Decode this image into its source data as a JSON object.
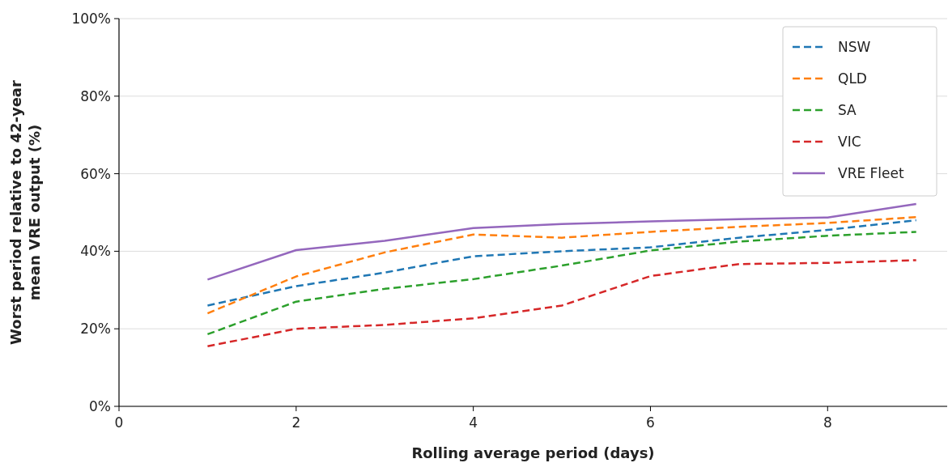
{
  "chart_data": {
    "type": "line",
    "xlabel": "Rolling average period (days)",
    "ylabel": "Worst period relative to 42-year mean VRE output (%)",
    "x": [
      1,
      2,
      3,
      4,
      5,
      6,
      7,
      8,
      9
    ],
    "series": [
      {
        "name": "NSW",
        "color": "#1f77b4",
        "line_style": "dashed",
        "values": [
          26,
          31,
          34.5,
          38.7,
          40,
          41,
          43.5,
          45.5,
          48
        ]
      },
      {
        "name": "QLD",
        "color": "#ff7f0e",
        "line_style": "dashed",
        "values": [
          24,
          33.5,
          39.7,
          44.3,
          43.5,
          45,
          46.3,
          47.3,
          48.8
        ]
      },
      {
        "name": "SA",
        "color": "#2ca02c",
        "line_style": "dashed",
        "values": [
          18.6,
          27,
          30.3,
          32.8,
          36.3,
          40.2,
          42.5,
          44,
          45
        ]
      },
      {
        "name": "VIC",
        "color": "#d62728",
        "line_style": "dashed",
        "values": [
          15.5,
          20,
          21,
          22.7,
          26,
          33.6,
          36.7,
          37,
          37.7
        ]
      },
      {
        "name": "VRE Fleet",
        "color": "#9467bd",
        "line_style": "solid",
        "values": [
          32.7,
          40.3,
          42.7,
          46,
          47,
          47.7,
          48.3,
          48.7,
          52.2
        ]
      }
    ],
    "xlim": [
      0,
      9.35
    ],
    "xticks": [
      0,
      2,
      4,
      6,
      8
    ],
    "ylim": [
      0,
      100
    ],
    "yticks": [
      {
        "value": 0,
        "label": "0%"
      },
      {
        "value": 20,
        "label": "20%"
      },
      {
        "value": 40,
        "label": "40%"
      },
      {
        "value": 60,
        "label": "60%"
      },
      {
        "value": 80,
        "label": "80%"
      },
      {
        "value": 100,
        "label": "100%"
      }
    ],
    "grid": "y",
    "legend": "top right"
  }
}
